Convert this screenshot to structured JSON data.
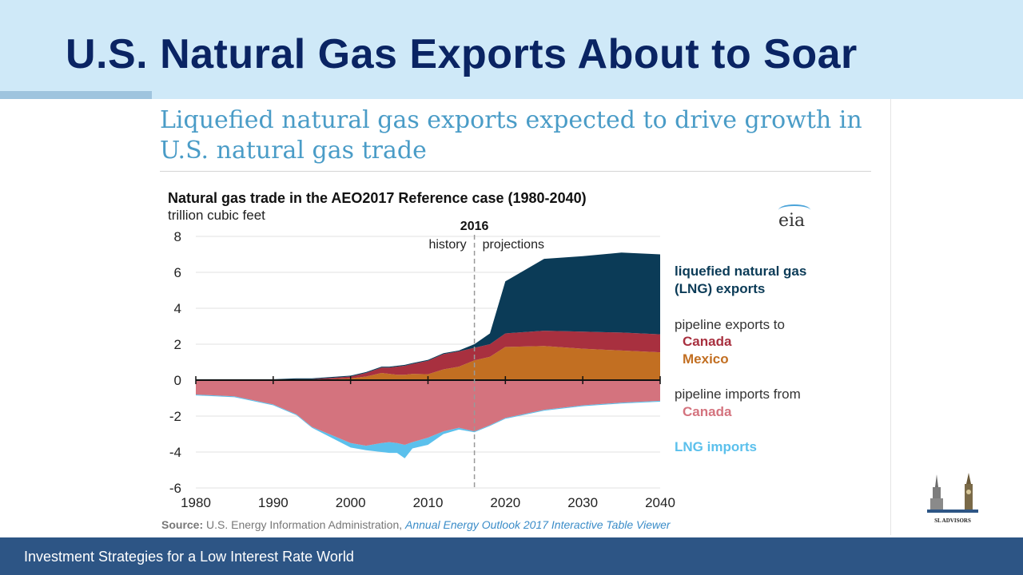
{
  "header": {
    "title": "U.S. Natural Gas Exports About to Soar"
  },
  "chart_card": {
    "heading": "Liquefied natural gas exports expected to drive growth in U.S. natural gas trade",
    "source_label": "Source:",
    "source_org": "U.S. Energy Information Administration,",
    "source_doc": "Annual Energy Outlook 2017 Interactive Table Viewer",
    "logo_text": "eia"
  },
  "footer": {
    "text": "Investment Strategies for a Low Interest Rate World"
  },
  "logo": {
    "text": "SL ADVISORS"
  },
  "colors": {
    "header_bg": "#cfe9f8",
    "title": "#0a2463",
    "footer_bg": "#2d5585",
    "lng_exports": "#0b3b57",
    "pipe_exp_canada": "#a8303f",
    "pipe_exp_mexico": "#c26f22",
    "pipe_imp_canada": "#d4737e",
    "lng_imports": "#5bc0ec"
  },
  "chart_data": {
    "type": "area",
    "title": "Natural gas trade in the AEO2017 Reference case (1980-2040)",
    "ylabel": "trillion cubic feet",
    "xlim": [
      1980,
      2040
    ],
    "ylim": [
      -6,
      8
    ],
    "x_ticks": [
      "1980",
      "1990",
      "2000",
      "2010",
      "2020",
      "2030",
      "2040"
    ],
    "y_ticks": [
      "8",
      "6",
      "4",
      "2",
      "0",
      "-2",
      "-4",
      "-6"
    ],
    "divider": {
      "x": 2016,
      "label": "2016",
      "left_label": "history",
      "right_label": "projections"
    },
    "legend": {
      "lng_exports": [
        "liquefied natural gas",
        "(LNG) exports"
      ],
      "pipeline_exports": {
        "title": "pipeline exports to",
        "items": [
          "Canada",
          "Mexico"
        ]
      },
      "pipeline_imports": {
        "title": "pipeline imports from",
        "items": [
          "Canada"
        ]
      },
      "lng_imports": "LNG imports"
    },
    "x": [
      1980,
      1985,
      1990,
      1993,
      1995,
      2000,
      2002,
      2004,
      2005,
      2006,
      2007,
      2008,
      2010,
      2012,
      2014,
      2016,
      2018,
      2020,
      2025,
      2030,
      2035,
      2040
    ],
    "series": [
      {
        "name": "Mexico",
        "values": [
          0.0,
          0.0,
          0.0,
          0.0,
          0.0,
          0.1,
          0.2,
          0.4,
          0.35,
          0.3,
          0.3,
          0.35,
          0.33,
          0.6,
          0.75,
          1.1,
          1.3,
          1.85,
          1.9,
          1.75,
          1.65,
          1.55
        ]
      },
      {
        "name": "Canada",
        "values": [
          0.0,
          0.0,
          0.0,
          0.05,
          0.05,
          0.1,
          0.2,
          0.3,
          0.35,
          0.45,
          0.5,
          0.55,
          0.75,
          0.85,
          0.85,
          0.7,
          0.7,
          0.75,
          0.85,
          0.95,
          1.0,
          1.0
        ]
      },
      {
        "name": "liquefied natural gas (LNG) exports",
        "values": [
          0.05,
          0.05,
          0.05,
          0.05,
          0.05,
          0.05,
          0.05,
          0.05,
          0.05,
          0.05,
          0.05,
          0.05,
          0.05,
          0.05,
          0.05,
          0.2,
          0.6,
          2.9,
          4.0,
          4.2,
          4.45,
          4.45
        ]
      },
      {
        "name": "Canada",
        "values": [
          -0.8,
          -0.9,
          -1.35,
          -1.9,
          -2.6,
          -3.5,
          -3.65,
          -3.5,
          -3.45,
          -3.5,
          -3.6,
          -3.45,
          -3.2,
          -2.85,
          -2.65,
          -2.85,
          -2.5,
          -2.1,
          -1.65,
          -1.4,
          -1.25,
          -1.15
        ]
      },
      {
        "name": "LNG imports",
        "values": [
          -0.05,
          -0.05,
          -0.05,
          -0.05,
          -0.05,
          -0.25,
          -0.25,
          -0.5,
          -0.6,
          -0.55,
          -0.75,
          -0.35,
          -0.4,
          -0.15,
          -0.1,
          -0.05,
          -0.05,
          -0.05,
          -0.05,
          -0.05,
          -0.05,
          -0.05
        ]
      }
    ]
  }
}
